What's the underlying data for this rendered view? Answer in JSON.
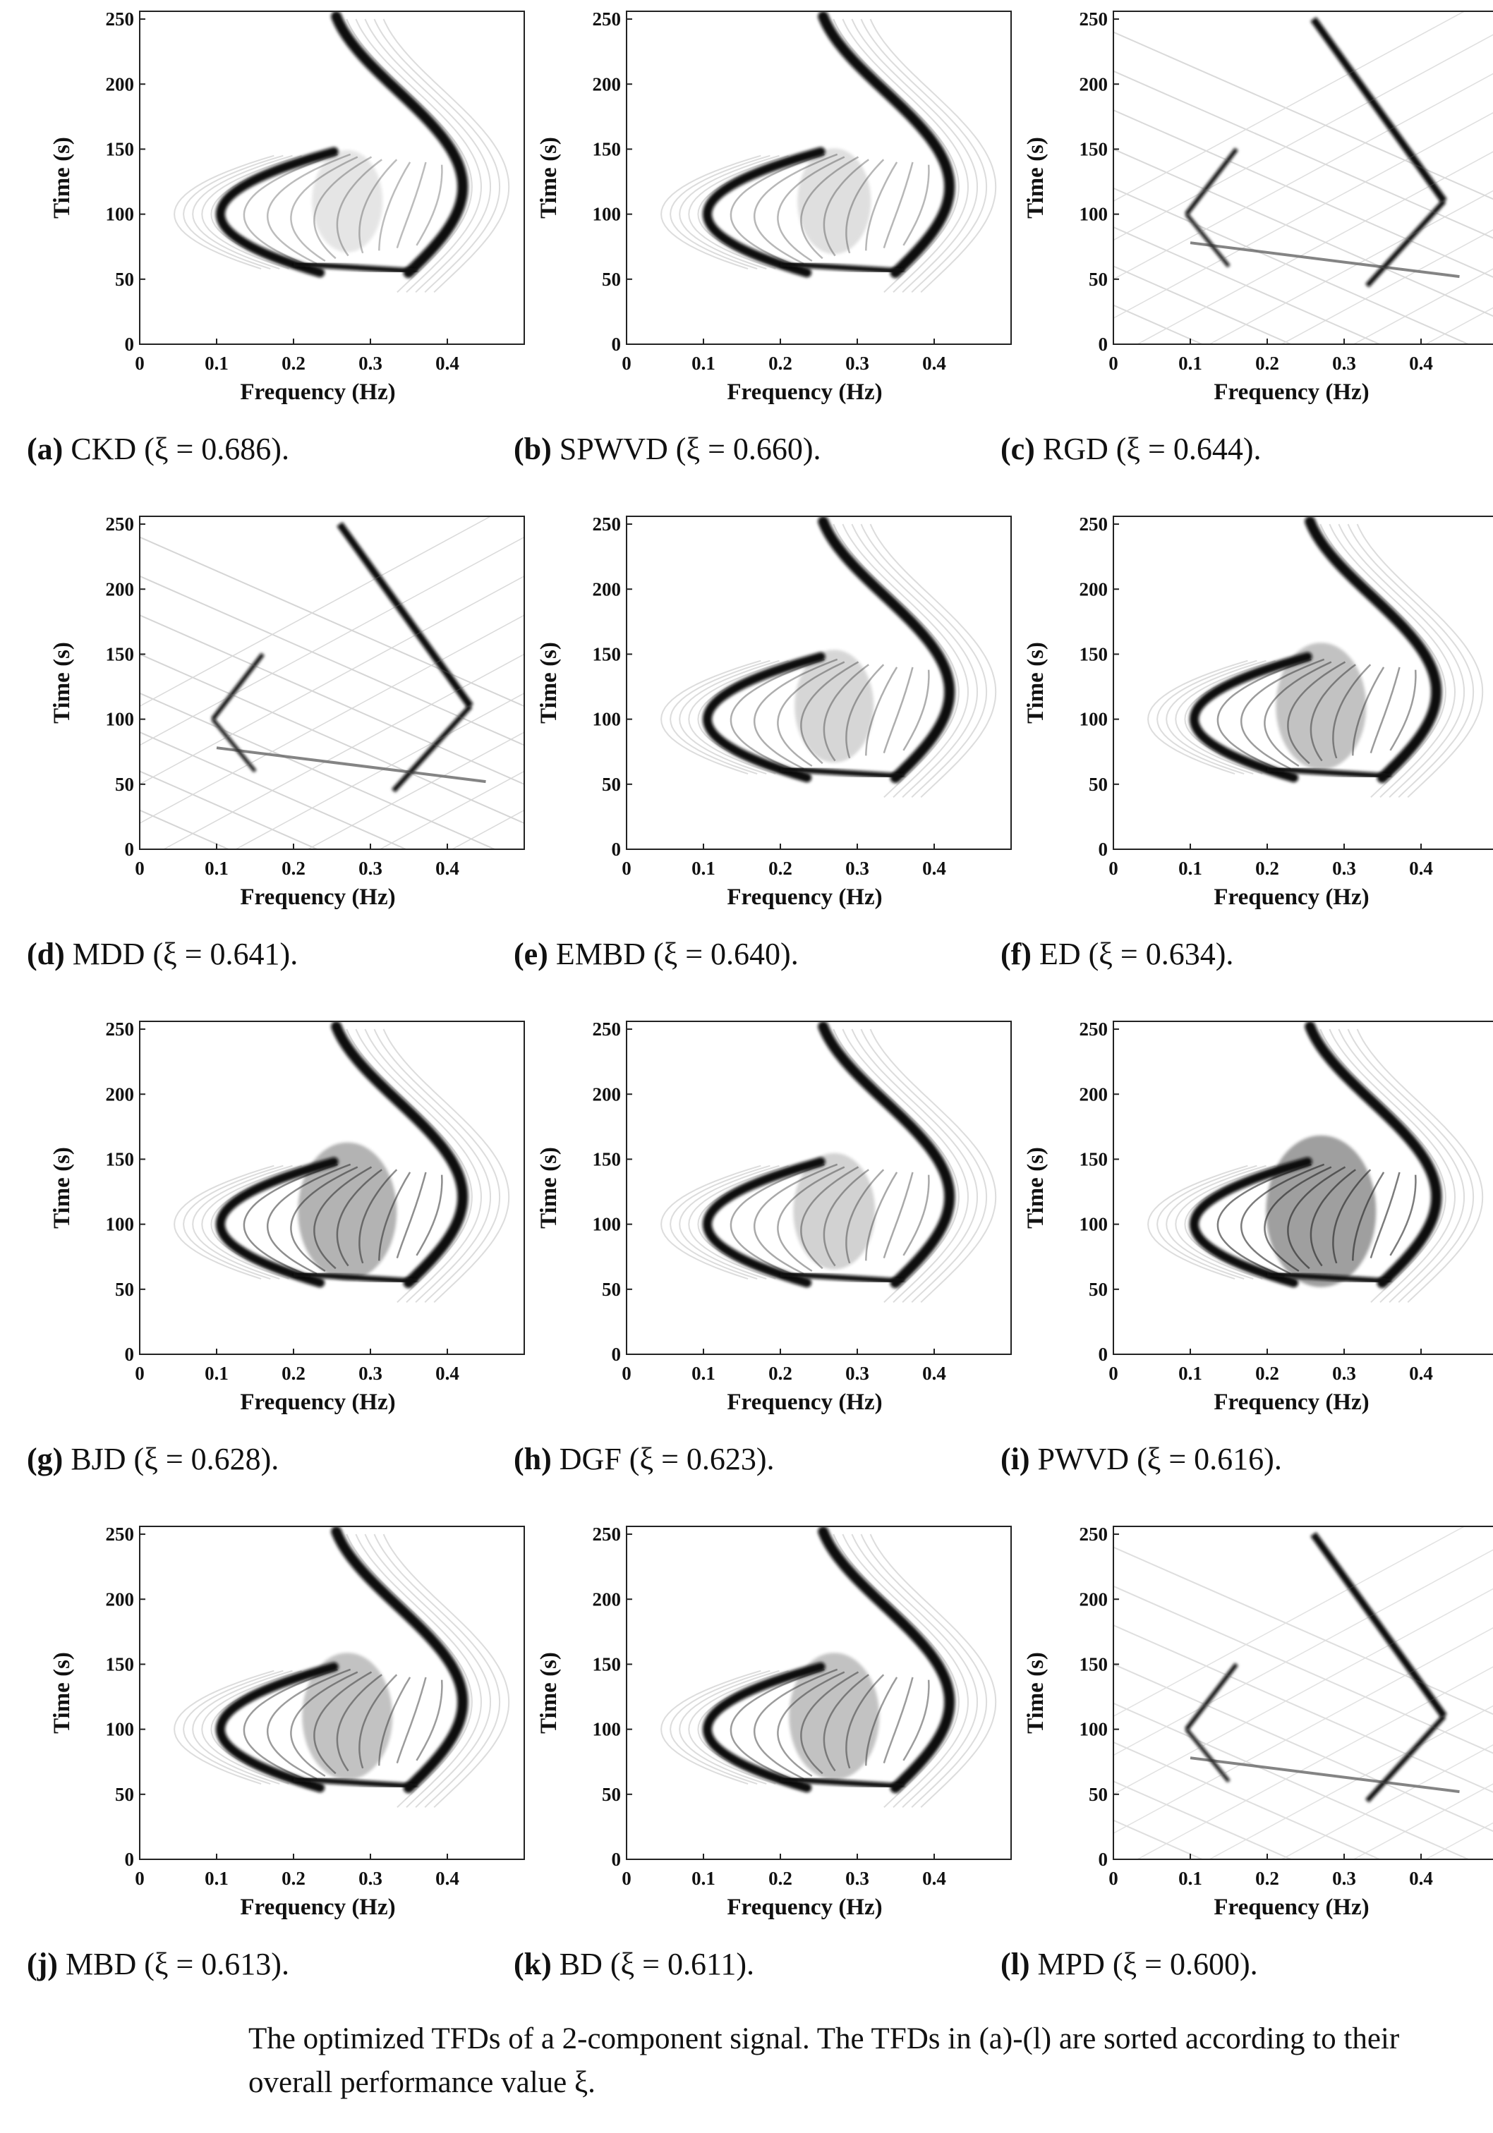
{
  "figure_caption": "The optimized TFDs of a 2-component signal. The TFDs in (a)-(l) are sorted according to their overall performance value ξ.",
  "chart_data": [
    {
      "type": "heatmap",
      "tag": "(a)",
      "method": "CKD",
      "xi": "0.686",
      "caption": "CKD (ξ = 0.686).",
      "xlabel": "Frequency (Hz)",
      "ylabel": "Time (s)",
      "xlim": [
        0,
        0.5
      ],
      "ylim": [
        0,
        256
      ],
      "xticks": [
        "0",
        "0.1",
        "0.2",
        "0.3",
        "0.4"
      ],
      "yticks": [
        "0",
        "50",
        "100",
        "150",
        "200",
        "250"
      ],
      "colormap": "gray-inverted",
      "pattern": "curves",
      "interference": 0.25
    },
    {
      "type": "heatmap",
      "tag": "(b)",
      "method": "SPWVD",
      "xi": "0.660",
      "caption": "SPWVD (ξ = 0.660).",
      "xlabel": "Frequency (Hz)",
      "ylabel": "Time (s)",
      "xlim": [
        0,
        0.5
      ],
      "ylim": [
        0,
        256
      ],
      "xticks": [
        "0",
        "0.1",
        "0.2",
        "0.3",
        "0.4"
      ],
      "yticks": [
        "0",
        "50",
        "100",
        "150",
        "200",
        "250"
      ],
      "colormap": "gray-inverted",
      "pattern": "curves",
      "interference": 0.3
    },
    {
      "type": "heatmap",
      "tag": "(c)",
      "method": "RGD",
      "xi": "0.644",
      "caption": "RGD (ξ = 0.644).",
      "xlabel": "Frequency (Hz)",
      "ylabel": "Time (s)",
      "xlim": [
        0,
        0.5
      ],
      "ylim": [
        0,
        256
      ],
      "xticks": [
        "0",
        "0.1",
        "0.2",
        "0.3",
        "0.4"
      ],
      "yticks": [
        "0",
        "50",
        "100",
        "150",
        "200",
        "250"
      ],
      "colormap": "gray-inverted",
      "pattern": "lines",
      "interference": 0.3
    },
    {
      "type": "heatmap",
      "tag": "(d)",
      "method": "MDD",
      "xi": "0.641",
      "caption": "MDD (ξ = 0.641).",
      "xlabel": "Frequency (Hz)",
      "ylabel": "Time (s)",
      "xlim": [
        0,
        0.5
      ],
      "ylim": [
        0,
        256
      ],
      "xticks": [
        "0",
        "0.1",
        "0.2",
        "0.3",
        "0.4"
      ],
      "yticks": [
        "0",
        "50",
        "100",
        "150",
        "200",
        "250"
      ],
      "colormap": "gray-inverted",
      "pattern": "lines",
      "interference": 0.4
    },
    {
      "type": "heatmap",
      "tag": "(e)",
      "method": "EMBD",
      "xi": "0.640",
      "caption": "EMBD (ξ = 0.640).",
      "xlabel": "Frequency (Hz)",
      "ylabel": "Time (s)",
      "xlim": [
        0,
        0.5
      ],
      "ylim": [
        0,
        256
      ],
      "xticks": [
        "0",
        "0.1",
        "0.2",
        "0.3",
        "0.4"
      ],
      "yticks": [
        "0",
        "50",
        "100",
        "150",
        "200",
        "250"
      ],
      "colormap": "gray-inverted",
      "pattern": "curves",
      "interference": 0.4
    },
    {
      "type": "heatmap",
      "tag": "(f)",
      "method": "ED",
      "xi": "0.634",
      "caption": "ED (ξ = 0.634).",
      "xlabel": "Frequency (Hz)",
      "ylabel": "Time (s)",
      "xlim": [
        0,
        0.5
      ],
      "ylim": [
        0,
        256
      ],
      "xticks": [
        "0",
        "0.1",
        "0.2",
        "0.3",
        "0.4"
      ],
      "yticks": [
        "0",
        "50",
        "100",
        "150",
        "200",
        "250"
      ],
      "colormap": "gray-inverted",
      "pattern": "curves",
      "interference": 0.6
    },
    {
      "type": "heatmap",
      "tag": "(g)",
      "method": "BJD",
      "xi": "0.628",
      "caption": "BJD (ξ = 0.628).",
      "xlabel": "Frequency (Hz)",
      "ylabel": "Time (s)",
      "xlim": [
        0,
        0.5
      ],
      "ylim": [
        0,
        256
      ],
      "xticks": [
        "0",
        "0.1",
        "0.2",
        "0.3",
        "0.4"
      ],
      "yticks": [
        "0",
        "50",
        "100",
        "150",
        "200",
        "250"
      ],
      "colormap": "gray-inverted",
      "pattern": "curves",
      "interference": 0.75
    },
    {
      "type": "heatmap",
      "tag": "(h)",
      "method": "DGF",
      "xi": "0.623",
      "caption": "DGF (ξ = 0.623).",
      "xlabel": "Frequency (Hz)",
      "ylabel": "Time (s)",
      "xlim": [
        0,
        0.5
      ],
      "ylim": [
        0,
        256
      ],
      "xticks": [
        "0",
        "0.1",
        "0.2",
        "0.3",
        "0.4"
      ],
      "yticks": [
        "0",
        "50",
        "100",
        "150",
        "200",
        "250"
      ],
      "colormap": "gray-inverted",
      "pattern": "curves",
      "interference": 0.45
    },
    {
      "type": "heatmap",
      "tag": "(i)",
      "method": "PWVD",
      "xi": "0.616",
      "caption": "PWVD (ξ = 0.616).",
      "xlabel": "Frequency (Hz)",
      "ylabel": "Time (s)",
      "xlim": [
        0,
        0.5
      ],
      "ylim": [
        0,
        256
      ],
      "xticks": [
        "0",
        "0.1",
        "0.2",
        "0.3",
        "0.4"
      ],
      "yticks": [
        "0",
        "50",
        "100",
        "150",
        "200",
        "250"
      ],
      "colormap": "gray-inverted",
      "pattern": "curves",
      "interference": 0.95
    },
    {
      "type": "heatmap",
      "tag": "(j)",
      "method": "MBD",
      "xi": "0.613",
      "caption": "MBD (ξ = 0.613).",
      "xlabel": "Frequency (Hz)",
      "ylabel": "Time (s)",
      "xlim": [
        0,
        0.5
      ],
      "ylim": [
        0,
        256
      ],
      "xticks": [
        "0",
        "0.1",
        "0.2",
        "0.3",
        "0.4"
      ],
      "yticks": [
        "0",
        "50",
        "100",
        "150",
        "200",
        "250"
      ],
      "colormap": "gray-inverted",
      "pattern": "curves",
      "interference": 0.6
    },
    {
      "type": "heatmap",
      "tag": "(k)",
      "method": "BD",
      "xi": "0.611",
      "caption": "BD (ξ = 0.611).",
      "xlabel": "Frequency (Hz)",
      "ylabel": "Time (s)",
      "xlim": [
        0,
        0.5
      ],
      "ylim": [
        0,
        256
      ],
      "xticks": [
        "0",
        "0.1",
        "0.2",
        "0.3",
        "0.4"
      ],
      "yticks": [
        "0",
        "50",
        "100",
        "150",
        "200",
        "250"
      ],
      "colormap": "gray-inverted",
      "pattern": "curves",
      "interference": 0.6
    },
    {
      "type": "heatmap",
      "tag": "(l)",
      "method": "MPD",
      "xi": "0.600",
      "caption": "MPD (ξ = 0.600).",
      "xlabel": "Frequency (Hz)",
      "ylabel": "Time (s)",
      "xlim": [
        0,
        0.5
      ],
      "ylim": [
        0,
        256
      ],
      "xticks": [
        "0",
        "0.1",
        "0.2",
        "0.3",
        "0.4"
      ],
      "yticks": [
        "0",
        "50",
        "100",
        "150",
        "200",
        "250"
      ],
      "colormap": "gray-inverted",
      "pattern": "lines",
      "interference": 0.2
    }
  ]
}
